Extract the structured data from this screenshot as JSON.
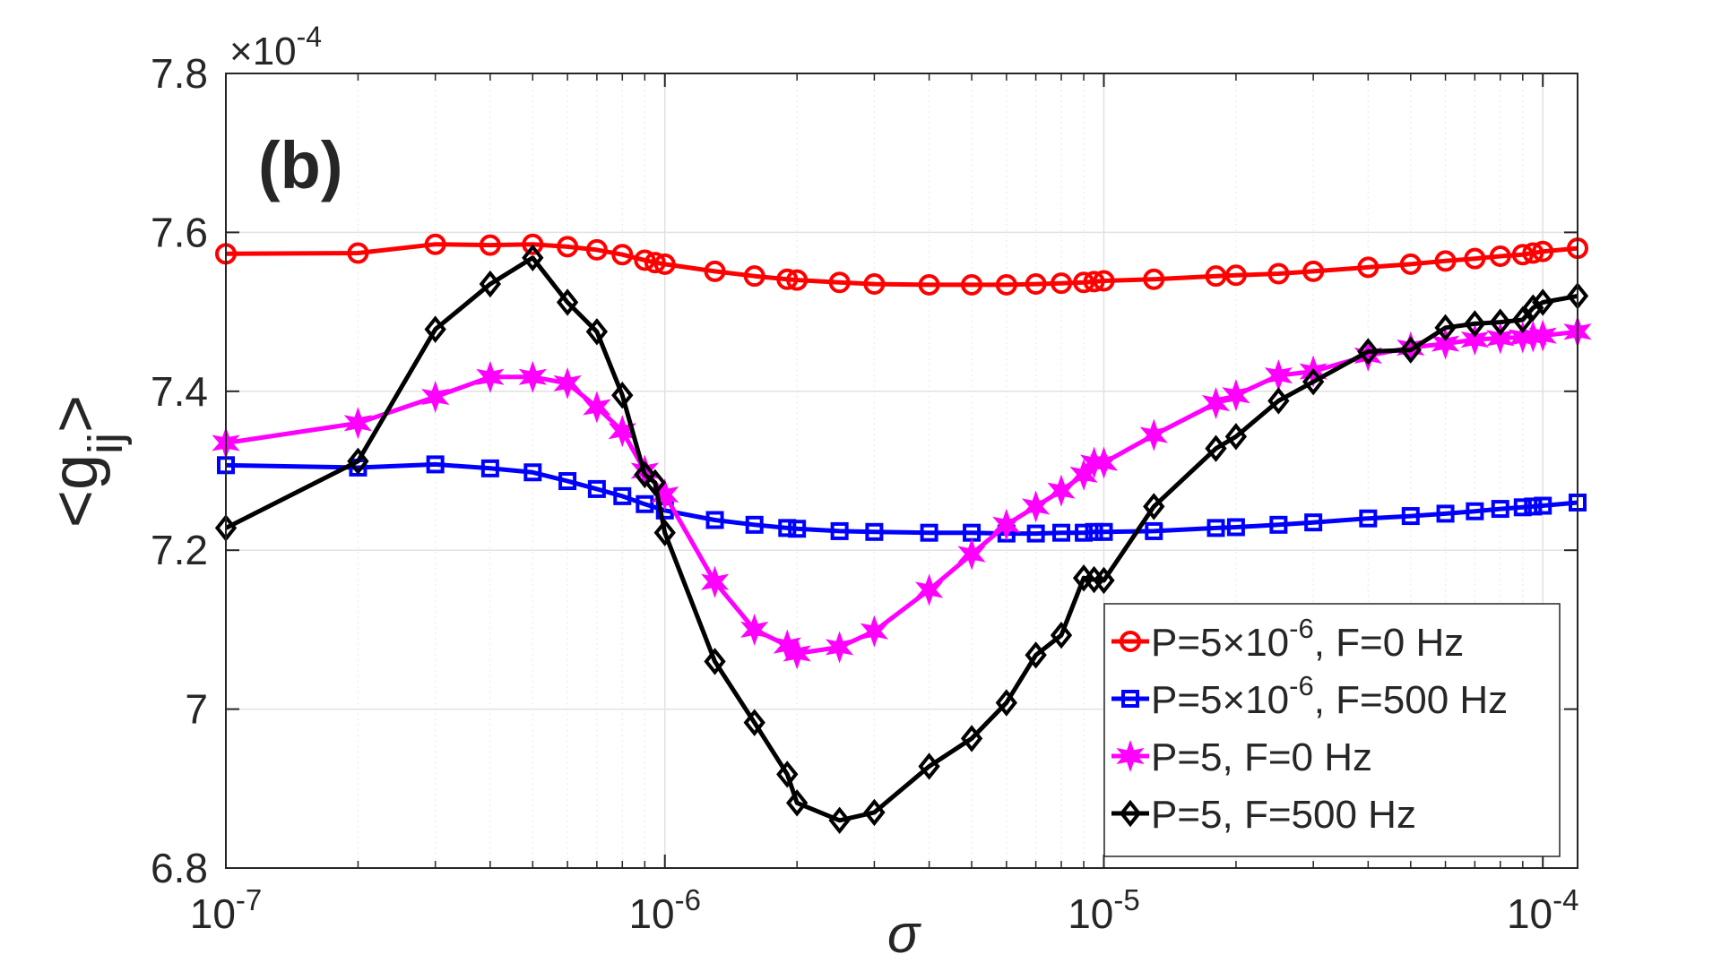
{
  "chart_data": {
    "type": "line",
    "panel_label": "(b)",
    "xlabel": "σ",
    "ylabel": {
      "base": "<g",
      "sub": "ij",
      "close": ">"
    },
    "y_exponent": {
      "prefix": "×10",
      "power": "-4"
    },
    "xscale": "log",
    "xlim": [
      1e-07,
      0.00012
    ],
    "ylim": [
      6.8,
      7.8
    ],
    "grid": true,
    "legend_position": "bottom-right",
    "xticks": [
      {
        "value": 1e-07,
        "base": "10",
        "exp": "-7"
      },
      {
        "value": 1e-06,
        "base": "10",
        "exp": "-6"
      },
      {
        "value": 1e-05,
        "base": "10",
        "exp": "-5"
      },
      {
        "value": 0.0001,
        "base": "10",
        "exp": "-4"
      }
    ],
    "yticks": [
      {
        "value": 6.8,
        "label": "6.8"
      },
      {
        "value": 7.0,
        "label": "7"
      },
      {
        "value": 7.2,
        "label": "7.2"
      },
      {
        "value": 7.4,
        "label": "7.4"
      },
      {
        "value": 7.6,
        "label": "7.6"
      },
      {
        "value": 7.8,
        "label": "7.8"
      }
    ],
    "series": [
      {
        "name": "P=5×10^-6, F=0 Hz",
        "legend": {
          "pre": "P=5×10",
          "sup": "-6",
          "post": ", F=0 Hz"
        },
        "color": "#ff0000",
        "marker": "circle",
        "x": [
          1e-07,
          2e-07,
          3e-07,
          4e-07,
          5e-07,
          6e-07,
          7e-07,
          8e-07,
          9e-07,
          9.5e-07,
          1e-06,
          1.3e-06,
          1.6e-06,
          1.9e-06,
          2e-06,
          2.5e-06,
          3e-06,
          4e-06,
          5e-06,
          6e-06,
          7e-06,
          8e-06,
          9e-06,
          9.5e-06,
          1e-05,
          1.3e-05,
          1.8e-05,
          2e-05,
          2.5e-05,
          3e-05,
          4e-05,
          5e-05,
          6e-05,
          7e-05,
          8e-05,
          9e-05,
          9.5e-05,
          0.0001,
          0.00012
        ],
        "y": [
          7.573,
          7.574,
          7.585,
          7.584,
          7.585,
          7.582,
          7.578,
          7.572,
          7.565,
          7.562,
          7.56,
          7.551,
          7.545,
          7.541,
          7.54,
          7.537,
          7.535,
          7.534,
          7.534,
          7.534,
          7.535,
          7.536,
          7.537,
          7.538,
          7.539,
          7.541,
          7.545,
          7.546,
          7.548,
          7.551,
          7.556,
          7.56,
          7.564,
          7.567,
          7.57,
          7.572,
          7.574,
          7.576,
          7.58
        ]
      },
      {
        "name": "P=5×10^-6, F=500 Hz",
        "legend": {
          "pre": "P=5×10",
          "sup": "-6",
          "post": ", F=500 Hz"
        },
        "color": "#0000ff",
        "marker": "square",
        "x": [
          1e-07,
          2e-07,
          3e-07,
          4e-07,
          5e-07,
          6e-07,
          7e-07,
          8e-07,
          9e-07,
          1e-06,
          1.3e-06,
          1.6e-06,
          1.9e-06,
          2e-06,
          2.5e-06,
          3e-06,
          4e-06,
          5e-06,
          6e-06,
          7e-06,
          8e-06,
          9e-06,
          9.5e-06,
          1e-05,
          1.3e-05,
          1.8e-05,
          2e-05,
          2.5e-05,
          3e-05,
          4e-05,
          5e-05,
          6e-05,
          7e-05,
          8e-05,
          9e-05,
          9.5e-05,
          0.0001,
          0.00012
        ],
        "y": [
          7.307,
          7.304,
          7.308,
          7.303,
          7.298,
          7.287,
          7.277,
          7.268,
          7.258,
          7.25,
          7.238,
          7.232,
          7.228,
          7.227,
          7.224,
          7.223,
          7.222,
          7.222,
          7.221,
          7.221,
          7.222,
          7.222,
          7.223,
          7.223,
          7.224,
          7.228,
          7.229,
          7.232,
          7.235,
          7.24,
          7.243,
          7.246,
          7.249,
          7.252,
          7.254,
          7.255,
          7.256,
          7.26
        ]
      },
      {
        "name": "P=5, F=0 Hz",
        "legend": {
          "pre": "P=5, F=0 Hz",
          "sup": "",
          "post": ""
        },
        "color": "#ff00ff",
        "marker": "star",
        "x": [
          1e-07,
          2e-07,
          3e-07,
          4e-07,
          5e-07,
          6e-07,
          7e-07,
          8e-07,
          9e-07,
          1e-06,
          1.3e-06,
          1.6e-06,
          1.9e-06,
          2e-06,
          2.5e-06,
          3e-06,
          4e-06,
          5e-06,
          6e-06,
          7e-06,
          8e-06,
          9e-06,
          9.5e-06,
          1e-05,
          1.3e-05,
          1.8e-05,
          2e-05,
          2.5e-05,
          3e-05,
          4e-05,
          5e-05,
          6e-05,
          7e-05,
          8e-05,
          9e-05,
          9.5e-05,
          0.0001,
          0.00012
        ],
        "y": [
          7.335,
          7.36,
          7.393,
          7.418,
          7.418,
          7.41,
          7.38,
          7.35,
          7.3,
          7.27,
          7.16,
          7.1,
          7.08,
          7.07,
          7.078,
          7.098,
          7.15,
          7.195,
          7.232,
          7.255,
          7.275,
          7.295,
          7.31,
          7.31,
          7.345,
          7.385,
          7.395,
          7.42,
          7.425,
          7.445,
          7.455,
          7.46,
          7.465,
          7.467,
          7.468,
          7.469,
          7.47,
          7.475
        ]
      },
      {
        "name": "P=5, F=500 Hz",
        "legend": {
          "pre": "P=5, F=500 Hz",
          "sup": "",
          "post": ""
        },
        "color": "#000000",
        "marker": "diamond",
        "x": [
          1e-07,
          2e-07,
          3e-07,
          4e-07,
          5e-07,
          6e-07,
          7e-07,
          8e-07,
          9e-07,
          9.5e-07,
          1e-06,
          1.3e-06,
          1.6e-06,
          1.9e-06,
          2e-06,
          2.5e-06,
          3e-06,
          4e-06,
          5e-06,
          6e-06,
          7e-06,
          8e-06,
          9e-06,
          9.5e-06,
          1e-05,
          1.3e-05,
          1.8e-05,
          2e-05,
          2.5e-05,
          3e-05,
          4e-05,
          5e-05,
          6e-05,
          7e-05,
          8e-05,
          9e-05,
          9.5e-05,
          0.0001,
          0.00012
        ],
        "y": [
          7.228,
          7.312,
          7.478,
          7.535,
          7.568,
          7.512,
          7.475,
          7.395,
          7.295,
          7.285,
          7.222,
          7.06,
          6.983,
          6.918,
          6.882,
          6.86,
          6.87,
          6.928,
          6.963,
          7.008,
          7.068,
          7.093,
          7.165,
          7.163,
          7.162,
          7.255,
          7.328,
          7.343,
          7.388,
          7.412,
          7.45,
          7.452,
          7.48,
          7.485,
          7.487,
          7.49,
          7.505,
          7.512,
          7.52
        ]
      }
    ]
  }
}
